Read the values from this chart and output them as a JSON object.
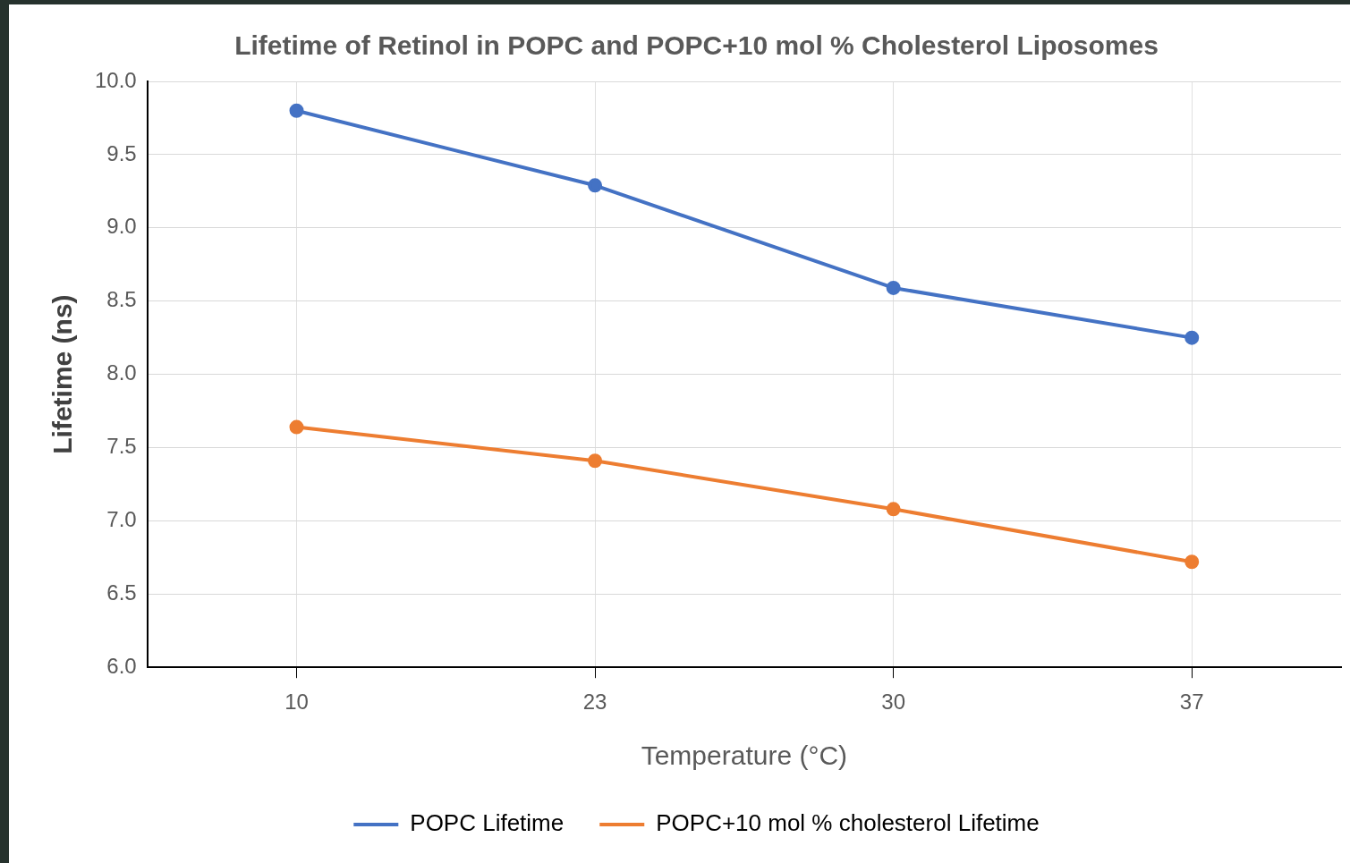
{
  "chart_data": {
    "type": "line",
    "title": "Lifetime of Retinol in POPC and POPC+10 mol % Cholesterol Liposomes",
    "xlabel": "Temperature (°C)",
    "ylabel": "Lifetime (ns)",
    "categories": [
      "10",
      "23",
      "30",
      "37"
    ],
    "series": [
      {
        "name": "POPC Lifetime",
        "color": "#4472c4",
        "values": [
          9.8,
          9.29,
          8.59,
          8.25
        ]
      },
      {
        "name": "POPC+10 mol % cholesterol Lifetime",
        "color": "#ed7d31",
        "values": [
          7.64,
          7.41,
          7.08,
          6.72
        ]
      }
    ],
    "ylim": [
      6,
      10
    ],
    "yticks": [
      {
        "value": 6,
        "label": "6.0"
      },
      {
        "value": 6.5,
        "label": "6.5"
      },
      {
        "value": 7,
        "label": "7.0"
      },
      {
        "value": 7.5,
        "label": "7.5"
      },
      {
        "value": 8,
        "label": "8.0"
      },
      {
        "value": 8.5,
        "label": "8.5"
      },
      {
        "value": 9,
        "label": "9.0"
      },
      {
        "value": 9.5,
        "label": "9.5"
      },
      {
        "value": 10,
        "label": "10.0"
      }
    ],
    "grid": true,
    "legend": "bottom",
    "marker": "circle",
    "line_style": "solid"
  }
}
